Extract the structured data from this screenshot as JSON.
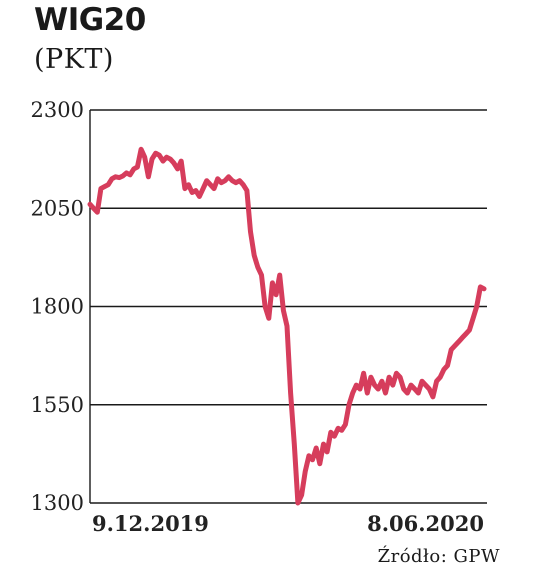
{
  "title": "WIG20",
  "subtitle": "(PKT)",
  "source": "Źródło: GPW",
  "colors": {
    "line": "#d63d5c",
    "grid": "#1a1a1a",
    "text": "#1a1a1a"
  },
  "chart_data": {
    "type": "line",
    "title": "WIG20",
    "ylabel": "(PKT)",
    "xlabel": "",
    "ylim": [
      1300,
      2300
    ],
    "yticks": [
      1300,
      1550,
      1800,
      2050,
      2300
    ],
    "ytick_labels": [
      "1300",
      "1550",
      "1800",
      "2050",
      "2300"
    ],
    "x_labels": [
      "9.12.2019",
      "8.06.2020"
    ],
    "grid": "horizontal",
    "series": [
      {
        "values": [
          2060,
          2050,
          2040,
          2100,
          2105,
          2110,
          2125,
          2130,
          2128,
          2132,
          2140,
          2135,
          2150,
          2155,
          2200,
          2180,
          2130,
          2175,
          2190,
          2185,
          2170,
          2180,
          2175,
          2165,
          2150,
          2170,
          2100,
          2110,
          2090,
          2095,
          2080,
          2100,
          2120,
          2110,
          2100,
          2125,
          2115,
          2120,
          2130,
          2120,
          2115,
          2120,
          2110,
          2095,
          1990,
          1930,
          1900,
          1880,
          1800,
          1770,
          1860,
          1830,
          1880,
          1790,
          1750,
          1580,
          1450,
          1300,
          1320,
          1380,
          1420,
          1410,
          1440,
          1400,
          1450,
          1430,
          1480,
          1470,
          1490,
          1485,
          1500,
          1550,
          1580,
          1600,
          1590,
          1630,
          1580,
          1620,
          1600,
          1590,
          1610,
          1580,
          1620,
          1600,
          1630,
          1620,
          1590,
          1580,
          1600,
          1590,
          1580,
          1610,
          1600,
          1590,
          1570,
          1610,
          1620,
          1640,
          1650,
          1690,
          1700,
          1710,
          1720,
          1730,
          1740,
          1770,
          1800,
          1850,
          1845
        ]
      }
    ]
  }
}
